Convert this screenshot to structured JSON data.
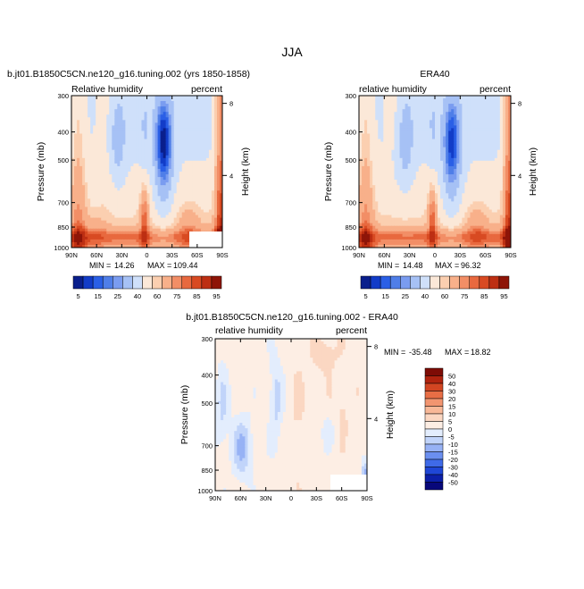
{
  "page": {
    "season": "JJA"
  },
  "colors": {
    "relative_humidity_scale": [
      "#0a1f8c",
      "#123cc8",
      "#2a5fe6",
      "#4f7ee8",
      "#7a9cf0",
      "#a6c1f5",
      "#cfe0fa",
      "#fbe8d8",
      "#fbcfb0",
      "#f8b08a",
      "#f28e66",
      "#e8693f",
      "#d84a22",
      "#bd2f13",
      "#8e1508"
    ],
    "difference_scale": [
      "#08087a",
      "#0c1fa8",
      "#1f46d6",
      "#3f6ae8",
      "#6b8ff0",
      "#97b2f5",
      "#c1d4fa",
      "#e3edfd",
      "#fdeee4",
      "#fbd7c2",
      "#f8b898",
      "#f29570",
      "#e86e45",
      "#d24522",
      "#b0230f",
      "#7e0c06"
    ]
  },
  "chart_data": [
    {
      "id": "model",
      "type": "heatmap",
      "title": "b.jt01.B1850C5CN.ne120_g16.tuning.002 (yrs 1850-1858)",
      "left_label": "Relative humidity",
      "right_label": "percent",
      "xlabel": "",
      "ylabel": "Pressure (mb)",
      "right_axis_label": "Height (km)",
      "x_ticks": [
        "90N",
        "60N",
        "30N",
        "0",
        "30S",
        "60S",
        "90S"
      ],
      "x_values": [
        90,
        60,
        30,
        0,
        -30,
        -60,
        -90
      ],
      "y_ticks": [
        "300",
        "400",
        "500",
        "700",
        "850",
        "1000"
      ],
      "y_values": [
        300,
        400,
        500,
        700,
        850,
        1000
      ],
      "height_ticks": [
        "8",
        "4"
      ],
      "height_values": [
        8,
        4
      ],
      "ylim": [
        1000,
        300
      ],
      "xlim": [
        90,
        -90
      ],
      "min_label": "MIN =",
      "min_value": "14.26",
      "max_label": "MAX =",
      "max_value": "109.44"
    },
    {
      "id": "obs",
      "type": "heatmap",
      "title": "ERA40",
      "left_label": "relative humidity",
      "right_label": "percent",
      "xlabel": "",
      "ylabel": "Pressure (mb)",
      "right_axis_label": "Height (km)",
      "x_ticks": [
        "90N",
        "60N",
        "30N",
        "0",
        "30S",
        "60S",
        "90S"
      ],
      "x_values": [
        90,
        60,
        30,
        0,
        -30,
        -60,
        -90
      ],
      "y_ticks": [
        "300",
        "400",
        "500",
        "700",
        "850",
        "1000"
      ],
      "y_values": [
        300,
        400,
        500,
        700,
        850,
        1000
      ],
      "height_ticks": [
        "8",
        "4"
      ],
      "height_values": [
        8,
        4
      ],
      "ylim": [
        1000,
        300
      ],
      "xlim": [
        90,
        -90
      ],
      "min_label": "MIN =",
      "min_value": "14.48",
      "max_label": "MAX =",
      "max_value": "96.32"
    },
    {
      "id": "diff",
      "type": "heatmap",
      "title": "b.jt01.B1850C5CN.ne120_g16.tuning.002 - ERA40",
      "left_label": "relative humidity",
      "right_label": "percent",
      "xlabel": "",
      "ylabel": "Pressure (mb)",
      "right_axis_label": "Height (km)",
      "x_ticks": [
        "90N",
        "60N",
        "30N",
        "0",
        "30S",
        "60S",
        "90S"
      ],
      "x_values": [
        90,
        60,
        30,
        0,
        -30,
        -60,
        -90
      ],
      "y_ticks": [
        "300",
        "400",
        "500",
        "700",
        "850",
        "1000"
      ],
      "y_values": [
        300,
        400,
        500,
        700,
        850,
        1000
      ],
      "height_ticks": [
        "8",
        "4"
      ],
      "height_values": [
        8,
        4
      ],
      "ylim": [
        1000,
        300
      ],
      "xlim": [
        90,
        -90
      ],
      "min_label": "MIN =",
      "min_value": "-35.48",
      "max_label": "MAX =",
      "max_value": "18.82"
    }
  ],
  "colorbar_rh": {
    "labels": [
      "5",
      "15",
      "25",
      "40",
      "60",
      "75",
      "85",
      "95"
    ]
  },
  "colorbar_diff": {
    "labels": [
      "50",
      "40",
      "30",
      "20",
      "15",
      "10",
      "5",
      "0",
      "-5",
      "-10",
      "-15",
      "-20",
      "-30",
      "-40",
      "-50"
    ]
  }
}
